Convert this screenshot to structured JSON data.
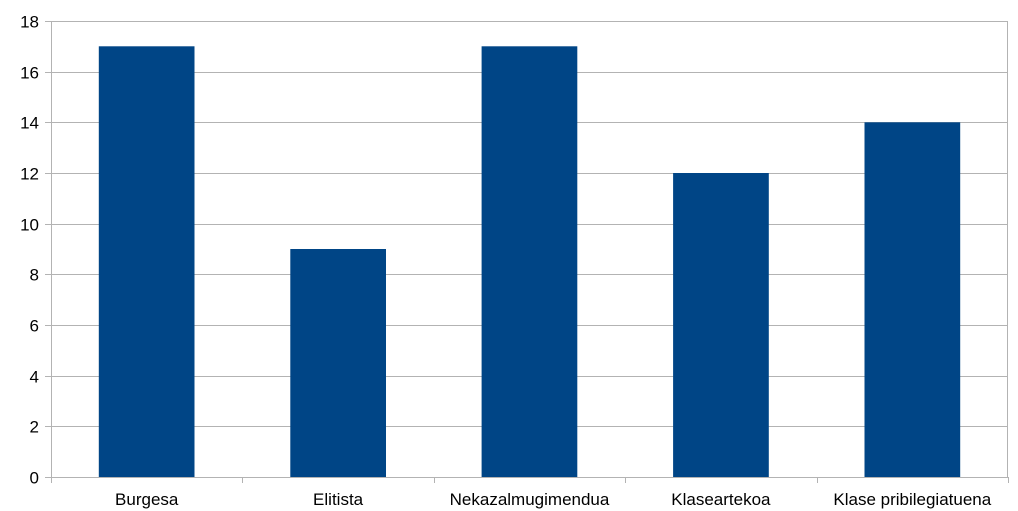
{
  "chart_data": {
    "type": "bar",
    "categories": [
      "Burgesa",
      "Elitista",
      "Nekazalmugimendua",
      "Klaseartekoa",
      "Klase pribilegiatuena"
    ],
    "series": [
      {
        "values": [
          17,
          9,
          17,
          12,
          14
        ]
      }
    ],
    "ylim": [
      0,
      18
    ],
    "yticks": [
      0,
      2,
      4,
      6,
      8,
      10,
      12,
      14,
      16,
      18
    ],
    "grid": true,
    "legend": "none",
    "colors": {
      "bar": "#004586",
      "grid": "#b3b3b3",
      "axis": "#b3b3b3",
      "text": "#000000"
    }
  }
}
